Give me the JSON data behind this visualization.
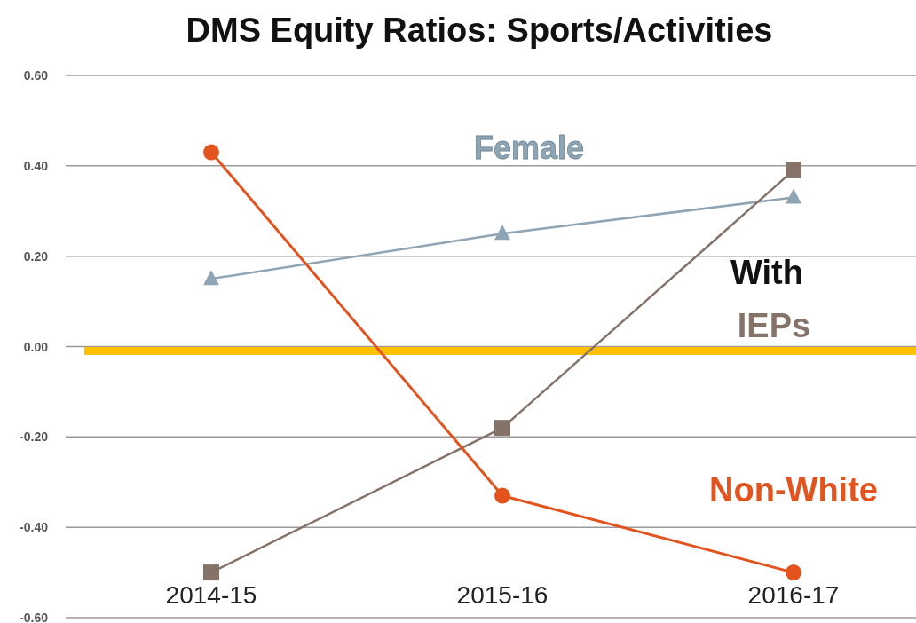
{
  "chart_data": {
    "type": "line",
    "title": "DMS Equity Ratios: Sports/Activities",
    "categories": [
      "2014-15",
      "2015-16",
      "2016-17"
    ],
    "series": [
      {
        "name": "Female",
        "color": "#8fa5b5",
        "marker": "triangle",
        "values": [
          0.15,
          0.25,
          0.33
        ]
      },
      {
        "name": "With IEPs",
        "color": "#85736a",
        "marker": "square",
        "values": [
          -0.5,
          -0.18,
          0.39
        ]
      },
      {
        "name": "Non-White",
        "color": "#e2531e",
        "marker": "circle",
        "values": [
          0.43,
          -0.33,
          -0.5
        ]
      }
    ],
    "ylim": [
      -0.6,
      0.6
    ],
    "yticks": [
      {
        "value": 0.6,
        "label": "0.60"
      },
      {
        "value": 0.4,
        "label": "0.40"
      },
      {
        "value": 0.2,
        "label": "0.20"
      },
      {
        "value": 0,
        "label": "0.00"
      },
      {
        "value": -0.2,
        "label": "-0.20"
      },
      {
        "value": -0.4,
        "label": "-0.40"
      },
      {
        "value": -0.6,
        "label": "-0.60"
      }
    ],
    "ref_lines": [
      {
        "axis": "y",
        "value": -0.01,
        "color": "#ffc000"
      }
    ],
    "grid": "y"
  }
}
